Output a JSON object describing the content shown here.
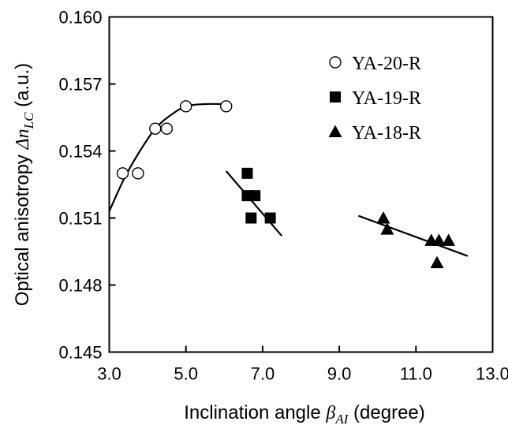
{
  "chart_data": {
    "type": "scatter",
    "xlabel": {
      "prefix": "Inclination angle ",
      "symbol": "β",
      "subscript": "AI",
      "suffix": "  (degree)"
    },
    "ylabel": {
      "prefix": "Optical anisotropy ",
      "symbol": "Δn",
      "subscript": "LC",
      "suffix": " (a.u.)"
    },
    "xlim": [
      3.0,
      13.0
    ],
    "ylim": [
      0.145,
      0.16
    ],
    "xticks": [
      3.0,
      5.0,
      7.0,
      9.0,
      11.0,
      13.0
    ],
    "xtick_labels": [
      "3.0",
      "5.0",
      "7.0",
      "9.0",
      "11.0",
      "13.0"
    ],
    "yticks": [
      0.145,
      0.148,
      0.151,
      0.154,
      0.157,
      0.16
    ],
    "ytick_labels": [
      "0.145",
      "0.148",
      "0.151",
      "0.154",
      "0.157",
      "0.160"
    ],
    "grid": false,
    "legend_position": "top-right",
    "series": [
      {
        "name": "YA-20-R",
        "marker": "circle-open",
        "color": "#000000",
        "points": [
          {
            "x": 3.35,
            "y": 0.153
          },
          {
            "x": 3.75,
            "y": 0.153
          },
          {
            "x": 4.2,
            "y": 0.155
          },
          {
            "x": 4.5,
            "y": 0.155
          },
          {
            "x": 5.0,
            "y": 0.156
          },
          {
            "x": 6.05,
            "y": 0.156
          }
        ],
        "fit": {
          "type": "curve",
          "points": [
            {
              "x": 3.0,
              "y": 0.1513
            },
            {
              "x": 3.4,
              "y": 0.1528
            },
            {
              "x": 3.8,
              "y": 0.154
            },
            {
              "x": 4.2,
              "y": 0.155
            },
            {
              "x": 4.6,
              "y": 0.1556
            },
            {
              "x": 5.0,
              "y": 0.156
            },
            {
              "x": 5.5,
              "y": 0.1561
            },
            {
              "x": 6.05,
              "y": 0.1561
            }
          ]
        }
      },
      {
        "name": "YA-19-R",
        "marker": "square-filled",
        "color": "#000000",
        "points": [
          {
            "x": 6.6,
            "y": 0.153
          },
          {
            "x": 6.6,
            "y": 0.152
          },
          {
            "x": 6.8,
            "y": 0.152
          },
          {
            "x": 6.7,
            "y": 0.151
          },
          {
            "x": 7.2,
            "y": 0.151
          }
        ],
        "fit": {
          "type": "line",
          "points": [
            {
              "x": 6.05,
              "y": 0.1531
            },
            {
              "x": 7.5,
              "y": 0.1502
            }
          ]
        }
      },
      {
        "name": "YA-18-R",
        "marker": "triangle-filled",
        "color": "#000000",
        "points": [
          {
            "x": 10.15,
            "y": 0.151
          },
          {
            "x": 10.25,
            "y": 0.1505
          },
          {
            "x": 11.4,
            "y": 0.15
          },
          {
            "x": 11.6,
            "y": 0.15
          },
          {
            "x": 11.85,
            "y": 0.15
          },
          {
            "x": 11.55,
            "y": 0.149
          }
        ],
        "fit": {
          "type": "line",
          "points": [
            {
              "x": 9.5,
              "y": 0.1511
            },
            {
              "x": 12.35,
              "y": 0.1493
            }
          ]
        }
      }
    ]
  }
}
